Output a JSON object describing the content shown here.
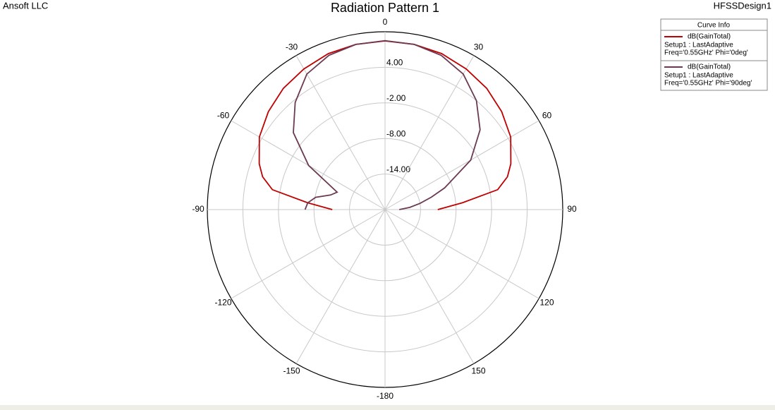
{
  "chart_data": {
    "type": "polar",
    "title": "Radiation Pattern 1",
    "left_label": "Ansoft LLC",
    "right_label": "HFSSDesign1",
    "legend_title": "Curve Info",
    "theta": [
      -90,
      -85,
      -80,
      -75,
      -70,
      -60,
      -50,
      -40,
      -30,
      -20,
      -10,
      0,
      10,
      20,
      30,
      40,
      50,
      60,
      70,
      75,
      80,
      85,
      90
    ],
    "series": [
      {
        "name": "dB(GainTotal)",
        "color": "#c00000",
        "details": [
          "Setup1 : LastAdaptive",
          "Freq='0.55GHz' Phi='0deg'"
        ],
        "values": [
          -11.1,
          -6.9,
          -0.7,
          1.4,
          2.6,
          4.5,
          5.7,
          6.7,
          7.4,
          8.0,
          8.3,
          8.45,
          8.3,
          8.0,
          7.4,
          6.7,
          5.7,
          4.5,
          2.6,
          1.4,
          -0.7,
          -6.9,
          -11.1
        ]
      },
      {
        "name": "dB(GainTotal)",
        "color": "#6b3a52",
        "details": [
          "Setup1 : LastAdaptive",
          "Freq='0.55GHz' Phi='90deg'"
        ],
        "values": [
          -6.5,
          -6.9,
          -8.1,
          -10.5,
          -11.4,
          -5.1,
          0.2,
          3.6,
          6.4,
          7.7,
          8.3,
          8.5,
          8.3,
          7.7,
          6.4,
          4.0,
          0.95,
          -3.3,
          -9.3,
          -11.9,
          -14,
          -15.8,
          -17.6
        ]
      }
    ],
    "rlim": [
      -20,
      10
    ],
    "rticks": [
      {
        "value": -14,
        "label": "-14.00"
      },
      {
        "value": -8,
        "label": "-8.00"
      },
      {
        "value": -2,
        "label": "-2.00"
      },
      {
        "value": 4,
        "label": "4.00"
      }
    ],
    "thetaticks": [
      0,
      30,
      60,
      90,
      120,
      150,
      -180,
      -150,
      -120,
      -90,
      -60,
      -30
    ],
    "grid": true
  }
}
